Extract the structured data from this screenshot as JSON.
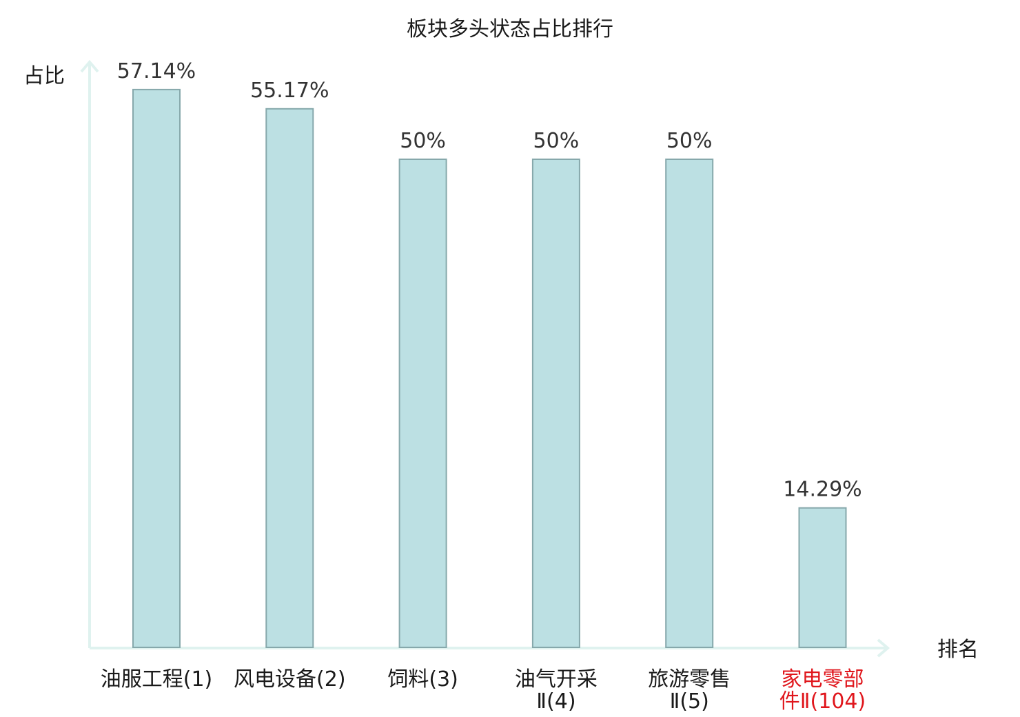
{
  "chart_data": {
    "type": "bar",
    "title": "板块多头状态占比排行",
    "ylabel": "占比",
    "xlabel": "排名",
    "ylim": [
      0,
      60
    ],
    "grid": false,
    "legend": "none",
    "categories": [
      [
        "油服工程(1)"
      ],
      [
        "风电设备(2)"
      ],
      [
        "饲料(3)"
      ],
      [
        "油气开采",
        "Ⅱ(4)"
      ],
      [
        "旅游零售",
        "Ⅱ(5)"
      ],
      [
        "家电零部",
        "件Ⅱ(104)"
      ]
    ],
    "values": [
      57.14,
      55.17,
      50,
      50,
      50,
      14.29
    ],
    "value_labels": [
      "57.14%",
      "55.17%",
      "50%",
      "50%",
      "50%",
      "14.29%"
    ],
    "highlight_index": 5,
    "colors": {
      "bar_fill": "#bce0e3",
      "bar_stroke": "#86a8ab",
      "axis": "#dff2ef",
      "highlight_text": "#e0161c",
      "text": "#1a1a1a"
    }
  }
}
